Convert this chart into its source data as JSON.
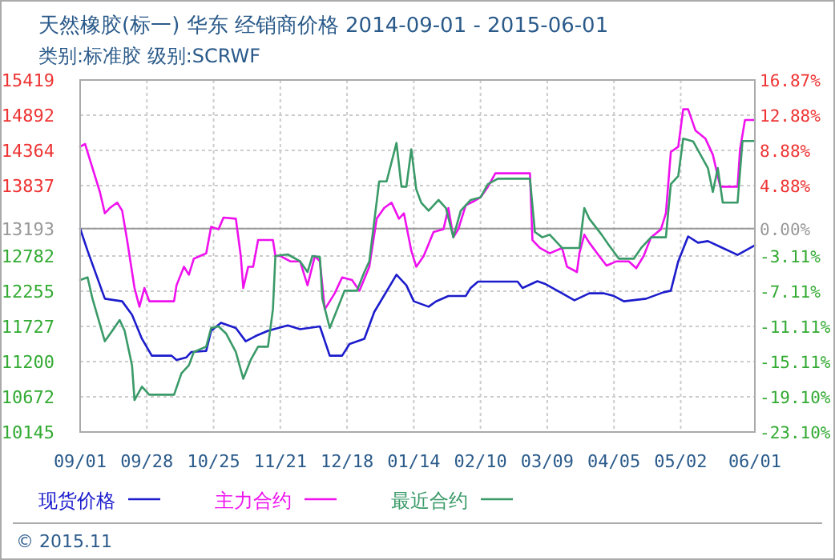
{
  "chart_data": {
    "type": "line",
    "title": "天然橡胶(标一) 华东 经销商价格 2014-09-01 - 2015-06-01",
    "subtitle": "类别:标准胶 级别:SCRWF",
    "xlim": [
      "2014-09-01",
      "2015-06-01"
    ],
    "xticks": [
      {
        "value": "2014-09-01",
        "label": "09/01"
      },
      {
        "value": "2014-09-28",
        "label": "09/28"
      },
      {
        "value": "2014-10-25",
        "label": "10/25"
      },
      {
        "value": "2014-11-21",
        "label": "11/21"
      },
      {
        "value": "2014-12-18",
        "label": "12/18"
      },
      {
        "value": "2015-01-14",
        "label": "01/14"
      },
      {
        "value": "2015-02-10",
        "label": "02/10"
      },
      {
        "value": "2015-03-09",
        "label": "03/09"
      },
      {
        "value": "2015-04-05",
        "label": "04/05"
      },
      {
        "value": "2015-05-02",
        "label": "05/02"
      },
      {
        "value": "2015-06-01",
        "label": "06/01"
      }
    ],
    "ylim": [
      10145,
      15419
    ],
    "yticks": [
      10145,
      10672,
      11200,
      11727,
      12255,
      12782,
      13193,
      13837,
      14364,
      14892,
      15419
    ],
    "y2lim": [
      -23.1,
      16.87
    ],
    "y2ticks": [
      {
        "value": -23.1,
        "label": "-23.10%"
      },
      {
        "value": -19.1,
        "label": "-19.10%"
      },
      {
        "value": -15.11,
        "label": "-15.11%"
      },
      {
        "value": -11.11,
        "label": "-11.11%"
      },
      {
        "value": -7.11,
        "label": "-7.11%"
      },
      {
        "value": -3.11,
        "label": "-3.11%"
      },
      {
        "value": 0,
        "label": "0.00%"
      },
      {
        "value": 4.88,
        "label": "4.88%"
      },
      {
        "value": 8.88,
        "label": "8.88%"
      },
      {
        "value": 12.88,
        "label": "12.88%"
      },
      {
        "value": 16.87,
        "label": "16.87%"
      }
    ],
    "ref_lines": [
      {
        "axis": "y",
        "value": 13193,
        "color": "#999999"
      }
    ],
    "grid": true,
    "legend": "bottom",
    "annotations": [
      "© 2015.11"
    ],
    "series": [
      {
        "name": "现货价格",
        "color": "#1c1ccc",
        "x": [
          "2014-09-01",
          "2014-09-04",
          "2014-09-11",
          "2014-09-18",
          "2014-09-22",
          "2014-09-26",
          "2014-09-30",
          "2014-10-08",
          "2014-10-10",
          "2014-10-14",
          "2014-10-16",
          "2014-10-22",
          "2014-10-24",
          "2014-10-28",
          "2014-11-03",
          "2014-11-07",
          "2014-11-11",
          "2014-11-16",
          "2014-11-24",
          "2014-11-29",
          "2014-12-07",
          "2014-12-11",
          "2014-12-16",
          "2014-12-19",
          "2014-12-25",
          "2014-12-29",
          "2015-01-07",
          "2015-01-11",
          "2015-01-14",
          "2015-01-20",
          "2015-01-23",
          "2015-01-28",
          "2015-02-04",
          "2015-02-06",
          "2015-02-09",
          "2015-02-25",
          "2015-02-27",
          "2015-03-05",
          "2015-03-08",
          "2015-03-15",
          "2015-03-20",
          "2015-03-26",
          "2015-04-01",
          "2015-04-05",
          "2015-04-09",
          "2015-04-18",
          "2015-04-25",
          "2015-04-28",
          "2015-05-01",
          "2015-05-05",
          "2015-05-09",
          "2015-05-13",
          "2015-05-19",
          "2015-05-25",
          "2015-06-01"
        ],
        "values": [
          13193,
          12861,
          12142,
          12103,
          11902,
          11542,
          11288,
          11288,
          11224,
          11264,
          11344,
          11360,
          11662,
          11782,
          11703,
          11504,
          11583,
          11662,
          11743,
          11686,
          11727,
          11288,
          11288,
          11463,
          11542,
          11943,
          12501,
          12343,
          12103,
          12022,
          12102,
          12182,
          12182,
          12302,
          12398,
          12398,
          12302,
          12405,
          12366,
          12223,
          12118,
          12223,
          12223,
          12182,
          12103,
          12142,
          12238,
          12262,
          12702,
          13076,
          12981,
          13005,
          12902,
          12798,
          12942
        ]
      },
      {
        "name": "主力合约",
        "color": "#ee11ee",
        "x": [
          "2014-09-01",
          "2014-09-03",
          "2014-09-05",
          "2014-09-09",
          "2014-09-11",
          "2014-09-13",
          "2014-09-16",
          "2014-09-18",
          "2014-09-20",
          "2014-09-23",
          "2014-09-25",
          "2014-09-27",
          "2014-09-29",
          "2014-10-09",
          "2014-10-10",
          "2014-10-13",
          "2014-10-15",
          "2014-10-17",
          "2014-10-22",
          "2014-10-24",
          "2014-10-27",
          "2014-10-29",
          "2014-11-03",
          "2014-11-05",
          "2014-11-06",
          "2014-11-08",
          "2014-11-10",
          "2014-11-12",
          "2014-11-18",
          "2014-11-19",
          "2014-11-21",
          "2014-11-25",
          "2014-11-29",
          "2014-12-02",
          "2014-12-05",
          "2014-12-07",
          "2014-12-09",
          "2014-12-13",
          "2014-12-16",
          "2014-12-20",
          "2014-12-23",
          "2014-12-27",
          "2014-12-30",
          "2015-01-02",
          "2015-01-05",
          "2015-01-08",
          "2015-01-10",
          "2015-01-13",
          "2015-01-15",
          "2015-01-18",
          "2015-01-22",
          "2015-01-26",
          "2015-01-28",
          "2015-01-30",
          "2015-02-01",
          "2015-02-04",
          "2015-02-07",
          "2015-02-10",
          "2015-02-13",
          "2015-02-16",
          "2015-03-02",
          "2015-03-03",
          "2015-03-06",
          "2015-03-10",
          "2015-03-15",
          "2015-03-17",
          "2015-03-21",
          "2015-03-22",
          "2015-03-24",
          "2015-03-26",
          "2015-03-30",
          "2015-04-02",
          "2015-04-06",
          "2015-04-11",
          "2015-04-14",
          "2015-04-17",
          "2015-04-20",
          "2015-04-24",
          "2015-04-26",
          "2015-04-28",
          "2015-05-01",
          "2015-05-03",
          "2015-05-05",
          "2015-05-08",
          "2015-05-12",
          "2015-05-15",
          "2015-05-18",
          "2015-05-25",
          "2015-05-26",
          "2015-05-28",
          "2015-06-01"
        ],
        "values": [
          14419,
          14460,
          14220,
          13741,
          13422,
          13501,
          13582,
          13461,
          13021,
          12302,
          12022,
          12302,
          12103,
          12103,
          12343,
          12621,
          12501,
          12741,
          12822,
          13220,
          13182,
          13357,
          13341,
          12782,
          12302,
          12621,
          12621,
          13021,
          13021,
          12782,
          12782,
          12702,
          12702,
          12343,
          12782,
          12702,
          11983,
          12223,
          12462,
          12422,
          12262,
          12621,
          13341,
          13501,
          13582,
          13341,
          13422,
          12861,
          12621,
          12782,
          13141,
          13182,
          13501,
          13062,
          13182,
          13541,
          13597,
          13661,
          13820,
          14021,
          14021,
          13021,
          12902,
          12822,
          12902,
          12621,
          12542,
          12822,
          13101,
          12981,
          12782,
          12638,
          12702,
          12702,
          12599,
          12782,
          13062,
          13182,
          13422,
          14340,
          14419,
          14980,
          14980,
          14660,
          14540,
          14300,
          13820,
          13820,
          14380,
          14819,
          14819
        ]
      },
      {
        "name": "最近合约",
        "color": "#3a9a68",
        "x": [
          "2014-09-01",
          "2014-09-04",
          "2014-09-06",
          "2014-09-11",
          "2014-09-14",
          "2014-09-17",
          "2014-09-19",
          "2014-09-22",
          "2014-09-23",
          "2014-09-26",
          "2014-09-29",
          "2014-10-09",
          "2014-10-12",
          "2014-10-15",
          "2014-10-17",
          "2014-10-22",
          "2014-10-24",
          "2014-10-27",
          "2014-10-30",
          "2014-11-03",
          "2014-11-06",
          "2014-11-09",
          "2014-11-12",
          "2014-11-16",
          "2014-11-18",
          "2014-11-19",
          "2014-11-24",
          "2014-11-29",
          "2014-12-02",
          "2014-12-04",
          "2014-12-07",
          "2014-12-08",
          "2014-12-11",
          "2014-12-14",
          "2014-12-17",
          "2014-12-22",
          "2014-12-25",
          "2014-12-27",
          "2014-12-31",
          "2015-01-03",
          "2015-01-07",
          "2015-01-09",
          "2015-01-11",
          "2015-01-13",
          "2015-01-15",
          "2015-01-17",
          "2015-01-20",
          "2015-01-24",
          "2015-01-27",
          "2015-01-30",
          "2015-02-02",
          "2015-02-06",
          "2015-02-10",
          "2015-02-13",
          "2015-02-17",
          "2015-03-02",
          "2015-03-04",
          "2015-03-07",
          "2015-03-10",
          "2015-03-15",
          "2015-03-22",
          "2015-03-24",
          "2015-03-26",
          "2015-03-31",
          "2015-04-03",
          "2015-04-07",
          "2015-04-13",
          "2015-04-16",
          "2015-04-20",
          "2015-04-26",
          "2015-04-28",
          "2015-05-01",
          "2015-05-03",
          "2015-05-07",
          "2015-05-10",
          "2015-05-13",
          "2015-05-15",
          "2015-05-17",
          "2015-05-19",
          "2015-05-25",
          "2015-05-27",
          "2015-06-01"
        ],
        "values": [
          12422,
          12462,
          12142,
          11504,
          11662,
          11823,
          11662,
          11144,
          10624,
          10823,
          10704,
          10704,
          11024,
          11144,
          11344,
          11423,
          11703,
          11727,
          11623,
          11344,
          10943,
          11224,
          11423,
          11423,
          11983,
          12782,
          12806,
          12702,
          12542,
          12782,
          12766,
          12142,
          11703,
          11983,
          12262,
          12262,
          12542,
          12702,
          13900,
          13900,
          14476,
          13820,
          13820,
          14380,
          13781,
          13582,
          13461,
          13621,
          13501,
          13062,
          13461,
          13621,
          13661,
          13860,
          13940,
          13940,
          13141,
          13062,
          13101,
          12902,
          12902,
          13501,
          13341,
          13101,
          12942,
          12741,
          12741,
          12902,
          13062,
          13062,
          13860,
          13980,
          14540,
          14500,
          14300,
          14100,
          13741,
          14100,
          13582,
          13582,
          14505,
          14505
        ]
      }
    ]
  }
}
